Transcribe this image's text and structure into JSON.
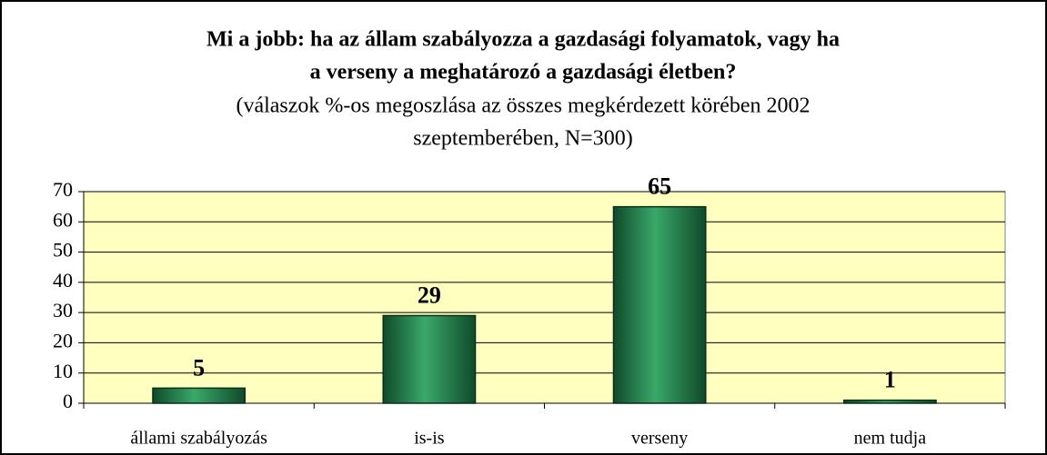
{
  "chart_data": {
    "type": "bar",
    "title": [
      "Mi a jobb: ha az állam szabályozza a gazdasági folyamatok, vagy ha",
      "a verseny a meghatározó a gazdasági életben?"
    ],
    "subtitle": [
      "(válaszok %-os megoszlása az összes megkérdezett körében 2002",
      "szeptemberében, N=300)"
    ],
    "categories": [
      "állami szabályozás",
      "is-is",
      "verseny",
      "nem tudja"
    ],
    "values": [
      5,
      29,
      65,
      1
    ],
    "color": "#2e8b57",
    "ylim": [
      0,
      70
    ],
    "yticks": [
      0,
      10,
      20,
      30,
      40,
      50,
      60,
      70
    ],
    "grid": true
  }
}
